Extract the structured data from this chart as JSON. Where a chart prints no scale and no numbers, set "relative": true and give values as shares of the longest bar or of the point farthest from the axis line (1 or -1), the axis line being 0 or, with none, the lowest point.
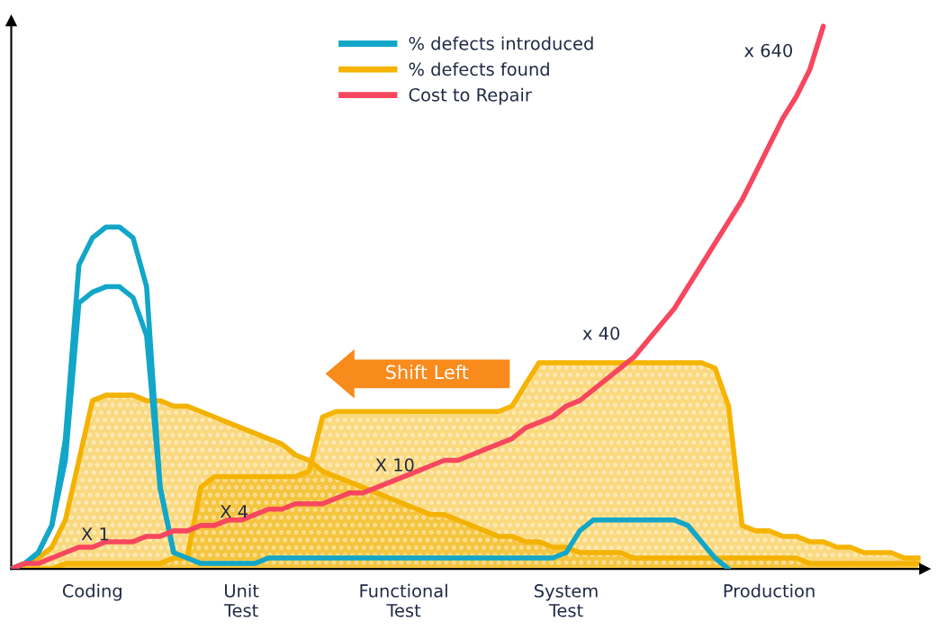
{
  "chart_data": {
    "type": "line",
    "relative": true,
    "legend": "top",
    "categories": [
      null,
      null,
      null,
      null,
      null,
      null,
      "Coding",
      null,
      null,
      null,
      null,
      null,
      null,
      null,
      null,
      null,
      null,
      "Unit\nTest",
      null,
      null,
      null,
      null,
      null,
      null,
      null,
      null,
      null,
      null,
      null,
      "Functional\nTest",
      null,
      null,
      null,
      null,
      null,
      null,
      null,
      null,
      null,
      null,
      null,
      "System\nTest",
      null,
      null,
      null,
      null,
      null,
      null,
      null,
      null,
      null,
      null,
      null,
      null,
      null,
      null,
      "Production",
      null,
      null,
      null,
      null,
      null,
      null,
      null,
      null,
      null,
      null,
      null
    ],
    "series": [
      {
        "name": "% defects introduced",
        "color": "#12a6c8",
        "values": [
          0,
          0.01,
          0.03,
          0.08,
          0.24,
          0.56,
          0.61,
          0.63,
          0.63,
          0.61,
          0.52,
          0.15,
          0.03,
          0.02,
          0.01,
          0.01,
          0.01,
          0.01,
          0.01,
          0.02,
          0.02,
          0.02,
          0.02,
          0.02,
          0.02,
          0.02,
          0.02,
          0.02,
          0.02,
          0.02,
          0.02,
          0.02,
          0.02,
          0.02,
          0.02,
          0.02,
          0.02,
          0.02,
          0.02,
          0.02,
          0.02,
          0.03,
          0.07,
          0.09,
          0.09,
          0.09,
          0.09,
          0.09,
          0.09,
          0.09,
          0.08,
          0.05,
          0.02,
          0,
          null,
          null,
          null,
          null,
          null,
          null,
          null,
          null,
          null,
          null,
          null,
          null,
          null,
          null
        ]
      },
      {
        "color": "#12a6c8",
        "values": [
          0,
          0.01,
          0.03,
          0.08,
          0.2,
          0.49,
          0.51,
          0.52,
          0.52,
          0.5,
          0.43,
          0.15,
          0.03,
          null,
          null,
          null,
          null,
          null,
          null,
          null,
          null,
          null,
          null,
          null,
          null,
          null,
          null,
          null,
          null,
          null,
          null,
          null,
          null,
          null,
          null,
          null,
          null,
          null,
          null,
          null,
          null,
          null,
          null,
          null,
          null,
          null,
          null,
          null,
          null,
          null,
          null,
          null,
          null,
          null,
          null,
          null,
          null,
          null,
          null,
          null,
          null,
          null,
          null,
          null,
          null,
          null,
          null,
          null
        ]
      },
      {
        "type": "area",
        "name": "% defects found",
        "color": "#f5b400",
        "values": [
          0,
          0,
          0,
          0,
          0.01,
          0.01,
          0.01,
          0.01,
          0.01,
          0.01,
          0.01,
          0.01,
          0.02,
          0.02,
          0.15,
          0.17,
          0.17,
          0.17,
          0.17,
          0.17,
          0.17,
          0.17,
          0.18,
          0.28,
          0.29,
          0.29,
          0.29,
          0.29,
          0.29,
          0.29,
          0.29,
          0.29,
          0.29,
          0.29,
          0.29,
          0.29,
          0.29,
          0.3,
          0.34,
          0.38,
          0.38,
          0.38,
          0.38,
          0.38,
          0.38,
          0.38,
          0.38,
          0.38,
          0.38,
          0.38,
          0.38,
          0.38,
          0.37,
          0.3,
          0.08,
          0.07,
          0.07,
          0.06,
          0.06,
          0.05,
          0.05,
          0.04,
          0.04,
          0.03,
          0.03,
          0.03,
          0.02,
          0.02
        ]
      },
      {
        "type": "area",
        "color": "#f3b200",
        "values": [
          0,
          0.01,
          0.02,
          0.04,
          0.09,
          0.2,
          0.31,
          0.32,
          0.32,
          0.32,
          0.31,
          0.31,
          0.3,
          0.3,
          0.29,
          0.28,
          0.27,
          0.26,
          0.25,
          0.24,
          0.23,
          0.21,
          0.2,
          0.18,
          0.17,
          0.16,
          0.15,
          0.14,
          0.13,
          0.12,
          0.11,
          0.1,
          0.1,
          0.09,
          0.08,
          0.07,
          0.06,
          0.06,
          0.05,
          0.05,
          0.04,
          0.04,
          0.03,
          0.03,
          0.03,
          0.03,
          0.02,
          0.02,
          0.02,
          0.02,
          0.02,
          0.02,
          0.02,
          0.02,
          0.02,
          0.02,
          0.02,
          0.02,
          0.02,
          0.01,
          0.01,
          0.01,
          0.01,
          0.01,
          0.01,
          0.01,
          0.01,
          0.01
        ]
      },
      {
        "name": "Cost to Repair",
        "color": "#f7475f",
        "values": [
          0,
          0.01,
          0.01,
          0.02,
          0.03,
          0.04,
          0.04,
          0.05,
          0.05,
          0.05,
          0.06,
          0.06,
          0.07,
          0.07,
          0.08,
          0.08,
          0.09,
          0.09,
          0.1,
          0.11,
          0.11,
          0.12,
          0.12,
          0.12,
          0.13,
          0.14,
          0.14,
          0.15,
          0.16,
          0.17,
          0.18,
          0.19,
          0.2,
          0.2,
          0.21,
          0.22,
          0.23,
          0.24,
          0.26,
          0.27,
          0.28,
          0.3,
          0.31,
          0.33,
          0.35,
          0.37,
          0.39,
          0.42,
          0.45,
          0.48,
          0.52,
          0.56,
          0.6,
          0.64,
          0.68,
          0.73,
          0.78,
          0.83,
          0.87,
          0.92,
          1,
          null,
          null,
          null,
          null,
          null,
          null,
          null
        ]
      }
    ],
    "annotations": [
      "X 1",
      "X 4",
      "X 10",
      "x 40",
      "x 640",
      "Shift Left"
    ]
  }
}
